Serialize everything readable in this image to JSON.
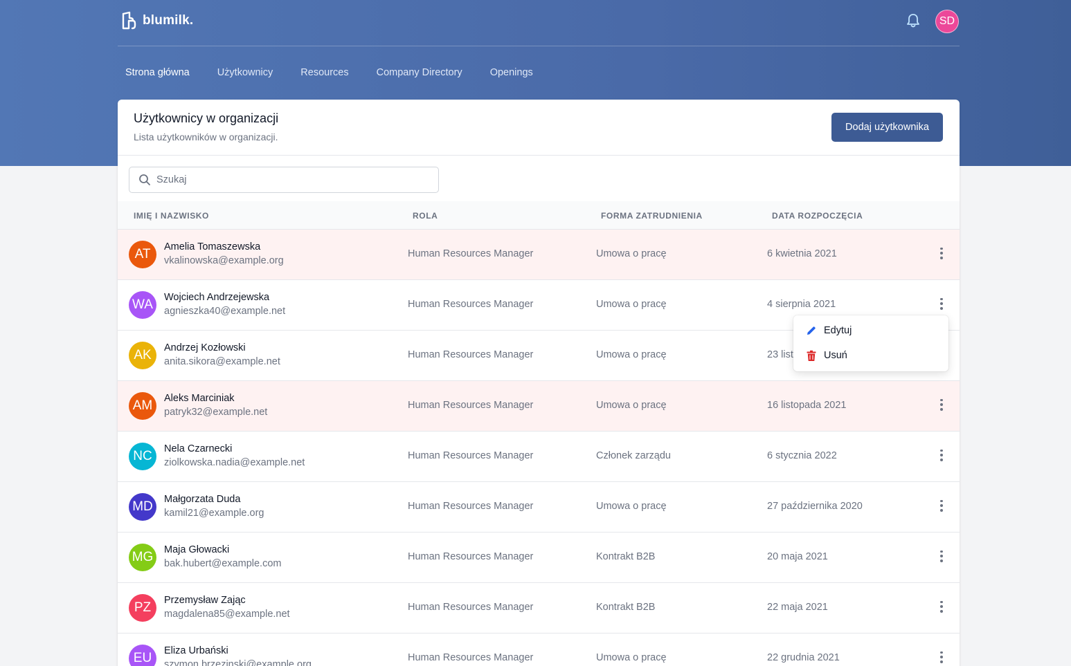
{
  "header": {
    "logo_text": "blumilk.",
    "user_initials": "SD"
  },
  "nav": {
    "items": [
      {
        "label": "Strona główna"
      },
      {
        "label": "Użytkownicy"
      },
      {
        "label": "Resources"
      },
      {
        "label": "Company Directory"
      },
      {
        "label": "Openings"
      }
    ]
  },
  "page": {
    "title": "Użytkownicy w organizacji",
    "subtitle": "Lista użytkowników w organizacji.",
    "add_button": "Dodaj użytkownika"
  },
  "search": {
    "placeholder": "Szukaj",
    "value": ""
  },
  "table": {
    "headers": [
      "Imię i nazwisko",
      "Rola",
      "Forma zatrudnienia",
      "Data rozpoczęcia"
    ],
    "rows": [
      {
        "initials": "AT",
        "name": "Amelia Tomaszewska",
        "email": "vkalinowska@example.org",
        "role": "Human Resources Manager",
        "employment": "Umowa o pracę",
        "start": "6 kwietnia 2021",
        "avatar_color": "#ea580c",
        "highlight": true
      },
      {
        "initials": "WA",
        "name": "Wojciech Andrzejewska",
        "email": "agnieszka40@example.net",
        "role": "Human Resources Manager",
        "employment": "Umowa o pracę",
        "start": "4 sierpnia 2021",
        "avatar_color": "#a855f7",
        "highlight": false
      },
      {
        "initials": "AK",
        "name": "Andrzej Kozłowski",
        "email": "anita.sikora@example.net",
        "role": "Human Resources Manager",
        "employment": "Umowa o pracę",
        "start": "23 list",
        "avatar_color": "#eab308",
        "highlight": false
      },
      {
        "initials": "AM",
        "name": "Aleks Marciniak",
        "email": "patryk32@example.net",
        "role": "Human Resources Manager",
        "employment": "Umowa o pracę",
        "start": "16 listopada 2021",
        "avatar_color": "#ea580c",
        "highlight": true
      },
      {
        "initials": "NC",
        "name": "Nela Czarnecki",
        "email": "ziolkowska.nadia@example.net",
        "role": "Human Resources Manager",
        "employment": "Członek zarządu",
        "start": "6 stycznia 2022",
        "avatar_color": "#06b6d4",
        "highlight": false
      },
      {
        "initials": "MD",
        "name": "Małgorzata Duda",
        "email": "kamil21@example.org",
        "role": "Human Resources Manager",
        "employment": "Umowa o pracę",
        "start": "27 października 2020",
        "avatar_color": "#4338ca",
        "highlight": false
      },
      {
        "initials": "MG",
        "name": "Maja Głowacki",
        "email": "bak.hubert@example.com",
        "role": "Human Resources Manager",
        "employment": "Kontrakt B2B",
        "start": "20 maja 2021",
        "avatar_color": "#84cc16",
        "highlight": false
      },
      {
        "initials": "PZ",
        "name": "Przemysław Zając",
        "email": "magdalena85@example.net",
        "role": "Human Resources Manager",
        "employment": "Kontrakt B2B",
        "start": "22 maja 2021",
        "avatar_color": "#f43f5e",
        "highlight": false
      },
      {
        "initials": "EU",
        "name": "Eliza Urbański",
        "email": "szymon.brzezinski@example.org",
        "role": "Human Resources Manager",
        "employment": "Umowa o pracę",
        "start": "22 grudnia 2021",
        "avatar_color": "#a855f7",
        "highlight": false
      }
    ]
  },
  "row_menu": {
    "edit_label": "Edytuj",
    "delete_label": "Usuń",
    "edit_icon": "pencil-icon",
    "delete_icon": "trash-icon"
  },
  "colors": {
    "brand": "#3d5b94",
    "edit_icon": "#2563eb",
    "delete_icon": "#dc2626"
  }
}
